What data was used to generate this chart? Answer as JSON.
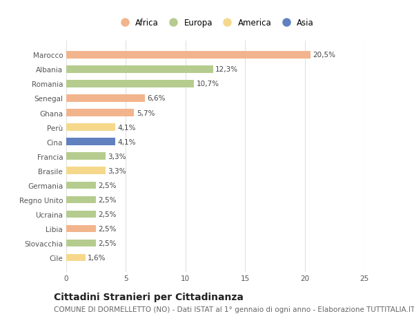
{
  "countries": [
    "Marocco",
    "Albania",
    "Romania",
    "Senegal",
    "Ghana",
    "Perù",
    "Cina",
    "Francia",
    "Brasile",
    "Germania",
    "Regno Unito",
    "Ucraina",
    "Libia",
    "Slovacchia",
    "Cile"
  ],
  "values": [
    20.5,
    12.3,
    10.7,
    6.6,
    5.7,
    4.1,
    4.1,
    3.3,
    3.3,
    2.5,
    2.5,
    2.5,
    2.5,
    2.5,
    1.6
  ],
  "labels": [
    "20,5%",
    "12,3%",
    "10,7%",
    "6,6%",
    "5,7%",
    "4,1%",
    "4,1%",
    "3,3%",
    "3,3%",
    "2,5%",
    "2,5%",
    "2,5%",
    "2,5%",
    "2,5%",
    "1,6%"
  ],
  "continents": [
    "Africa",
    "Europa",
    "Europa",
    "Africa",
    "Africa",
    "America",
    "Asia",
    "Europa",
    "America",
    "Europa",
    "Europa",
    "Europa",
    "Africa",
    "Europa",
    "America"
  ],
  "continent_colors": {
    "Africa": "#F2B48C",
    "Europa": "#B5CC8E",
    "America": "#F5D88C",
    "Asia": "#6080C0"
  },
  "legend_order": [
    "Africa",
    "Europa",
    "America",
    "Asia"
  ],
  "title": "Cittadini Stranieri per Cittadinanza",
  "subtitle": "COMUNE DI DORMELLETTO (NO) - Dati ISTAT al 1° gennaio di ogni anno - Elaborazione TUTTITALIA.IT",
  "xlim": [
    0,
    25
  ],
  "xticks": [
    0,
    5,
    10,
    15,
    20,
    25
  ],
  "background_color": "#ffffff",
  "grid_color": "#e0e0e0",
  "bar_height": 0.5,
  "title_fontsize": 10,
  "subtitle_fontsize": 7.5,
  "label_fontsize": 7.5,
  "tick_fontsize": 7.5,
  "legend_fontsize": 8.5
}
